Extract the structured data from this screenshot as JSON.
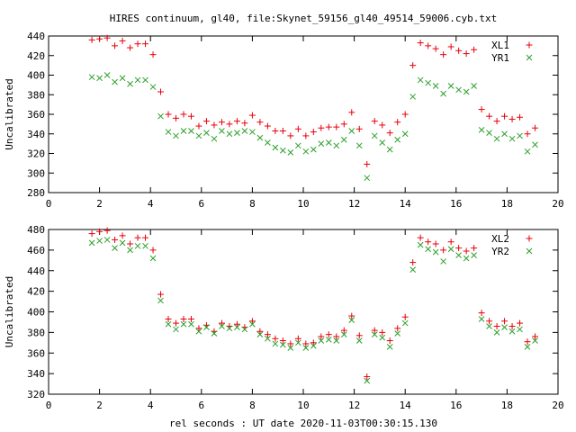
{
  "title": "HIRES continuum, gl40, file:Skynet_59156_gl40_49514_59006.cyb.txt",
  "xlabel": "rel seconds : UT date 2020-11-03T00:30:15.130",
  "colors": {
    "series_1": "#e8000b",
    "series_2": "#2ca02c",
    "axis": "#000000"
  },
  "chart_data": [
    {
      "type": "scatter",
      "ylabel": "Uncalibrated",
      "xlim": [
        0,
        20
      ],
      "ylim": [
        280,
        440
      ],
      "xticks": [
        0,
        2,
        4,
        6,
        8,
        10,
        12,
        14,
        16,
        18,
        20
      ],
      "yticks": [
        280,
        300,
        320,
        340,
        360,
        380,
        400,
        420,
        440
      ],
      "legend_position": "top-right",
      "grid": false,
      "series": [
        {
          "name": "XL1",
          "marker": "plus",
          "x": [
            1.7,
            2.0,
            2.3,
            2.6,
            2.9,
            3.2,
            3.5,
            3.8,
            4.1,
            4.4,
            4.7,
            5.0,
            5.3,
            5.6,
            5.9,
            6.2,
            6.5,
            6.8,
            7.1,
            7.4,
            7.7,
            8.0,
            8.3,
            8.6,
            8.9,
            9.2,
            9.5,
            9.8,
            10.1,
            10.4,
            10.7,
            11.0,
            11.3,
            11.6,
            11.9,
            12.2,
            12.5,
            12.8,
            13.1,
            13.4,
            13.7,
            14.0,
            14.3,
            14.6,
            14.9,
            15.2,
            15.5,
            15.8,
            16.1,
            16.4,
            16.7,
            17.0,
            17.3,
            17.6,
            17.9,
            18.2,
            18.5,
            18.8,
            19.1
          ],
          "y": [
            436,
            437,
            438,
            430,
            435,
            428,
            432,
            432,
            421,
            383,
            360,
            356,
            360,
            358,
            348,
            353,
            349,
            352,
            350,
            353,
            351,
            359,
            352,
            348,
            343,
            343,
            338,
            345,
            338,
            342,
            346,
            347,
            347,
            350,
            362,
            345,
            309,
            353,
            349,
            341,
            352,
            360,
            410,
            433,
            430,
            427,
            421,
            429,
            425,
            422,
            426,
            365,
            358,
            353,
            358,
            355,
            357,
            340,
            346
          ]
        },
        {
          "name": "YR1",
          "marker": "cross",
          "x": [
            1.7,
            2.0,
            2.3,
            2.6,
            2.9,
            3.2,
            3.5,
            3.8,
            4.1,
            4.4,
            4.7,
            5.0,
            5.3,
            5.6,
            5.9,
            6.2,
            6.5,
            6.8,
            7.1,
            7.4,
            7.7,
            8.0,
            8.3,
            8.6,
            8.9,
            9.2,
            9.5,
            9.8,
            10.1,
            10.4,
            10.7,
            11.0,
            11.3,
            11.6,
            11.9,
            12.2,
            12.5,
            12.8,
            13.1,
            13.4,
            13.7,
            14.0,
            14.3,
            14.6,
            14.9,
            15.2,
            15.5,
            15.8,
            16.1,
            16.4,
            16.7,
            17.0,
            17.3,
            17.6,
            17.9,
            18.2,
            18.5,
            18.8,
            19.1
          ],
          "y": [
            398,
            397,
            400,
            393,
            397,
            391,
            395,
            395,
            388,
            358,
            342,
            338,
            343,
            343,
            338,
            341,
            335,
            343,
            340,
            341,
            343,
            342,
            336,
            331,
            326,
            323,
            321,
            328,
            322,
            324,
            330,
            331,
            328,
            334,
            343,
            328,
            295,
            338,
            331,
            324,
            334,
            340,
            378,
            395,
            392,
            389,
            381,
            389,
            385,
            383,
            389,
            344,
            341,
            335,
            340,
            335,
            338,
            322,
            329
          ]
        }
      ]
    },
    {
      "type": "scatter",
      "ylabel": "Uncalibrated",
      "xlim": [
        0,
        20
      ],
      "ylim": [
        320,
        480
      ],
      "xticks": [
        0,
        2,
        4,
        6,
        8,
        10,
        12,
        14,
        16,
        18,
        20
      ],
      "yticks": [
        320,
        340,
        360,
        380,
        400,
        420,
        440,
        460,
        480
      ],
      "legend_position": "top-right",
      "grid": false,
      "series": [
        {
          "name": "XL2",
          "marker": "plus",
          "x": [
            1.7,
            2.0,
            2.3,
            2.6,
            2.9,
            3.2,
            3.5,
            3.8,
            4.1,
            4.4,
            4.7,
            5.0,
            5.3,
            5.6,
            5.9,
            6.2,
            6.5,
            6.8,
            7.1,
            7.4,
            7.7,
            8.0,
            8.3,
            8.6,
            8.9,
            9.2,
            9.5,
            9.8,
            10.1,
            10.4,
            10.7,
            11.0,
            11.3,
            11.6,
            11.9,
            12.2,
            12.5,
            12.8,
            13.1,
            13.4,
            13.7,
            14.0,
            14.3,
            14.6,
            14.9,
            15.2,
            15.5,
            15.8,
            16.1,
            16.4,
            16.7,
            17.0,
            17.3,
            17.6,
            17.9,
            18.2,
            18.5,
            18.8,
            19.1
          ],
          "y": [
            476,
            478,
            479,
            470,
            474,
            466,
            472,
            472,
            460,
            417,
            393,
            389,
            393,
            393,
            384,
            387,
            381,
            389,
            386,
            388,
            385,
            391,
            381,
            378,
            374,
            372,
            369,
            374,
            369,
            370,
            376,
            378,
            376,
            382,
            396,
            377,
            337,
            382,
            380,
            372,
            384,
            395,
            448,
            472,
            468,
            466,
            460,
            468,
            462,
            459,
            462,
            399,
            391,
            386,
            391,
            386,
            389,
            371,
            376
          ]
        },
        {
          "name": "YR2",
          "marker": "cross",
          "x": [
            1.7,
            2.0,
            2.3,
            2.6,
            2.9,
            3.2,
            3.5,
            3.8,
            4.1,
            4.4,
            4.7,
            5.0,
            5.3,
            5.6,
            5.9,
            6.2,
            6.5,
            6.8,
            7.1,
            7.4,
            7.7,
            8.0,
            8.3,
            8.6,
            8.9,
            9.2,
            9.5,
            9.8,
            10.1,
            10.4,
            10.7,
            11.0,
            11.3,
            11.6,
            11.9,
            12.2,
            12.5,
            12.8,
            13.1,
            13.4,
            13.7,
            14.0,
            14.3,
            14.6,
            14.9,
            15.2,
            15.5,
            15.8,
            16.1,
            16.4,
            16.7,
            17.0,
            17.3,
            17.6,
            17.9,
            18.2,
            18.5,
            18.8,
            19.1
          ],
          "y": [
            467,
            469,
            470,
            462,
            467,
            460,
            464,
            464,
            452,
            411,
            388,
            383,
            388,
            388,
            381,
            385,
            379,
            386,
            384,
            385,
            383,
            388,
            378,
            374,
            369,
            368,
            365,
            370,
            365,
            367,
            372,
            373,
            372,
            378,
            392,
            372,
            333,
            378,
            375,
            366,
            379,
            389,
            441,
            465,
            461,
            458,
            449,
            461,
            455,
            452,
            455,
            393,
            386,
            380,
            385,
            381,
            383,
            366,
            372
          ]
        }
      ]
    }
  ]
}
